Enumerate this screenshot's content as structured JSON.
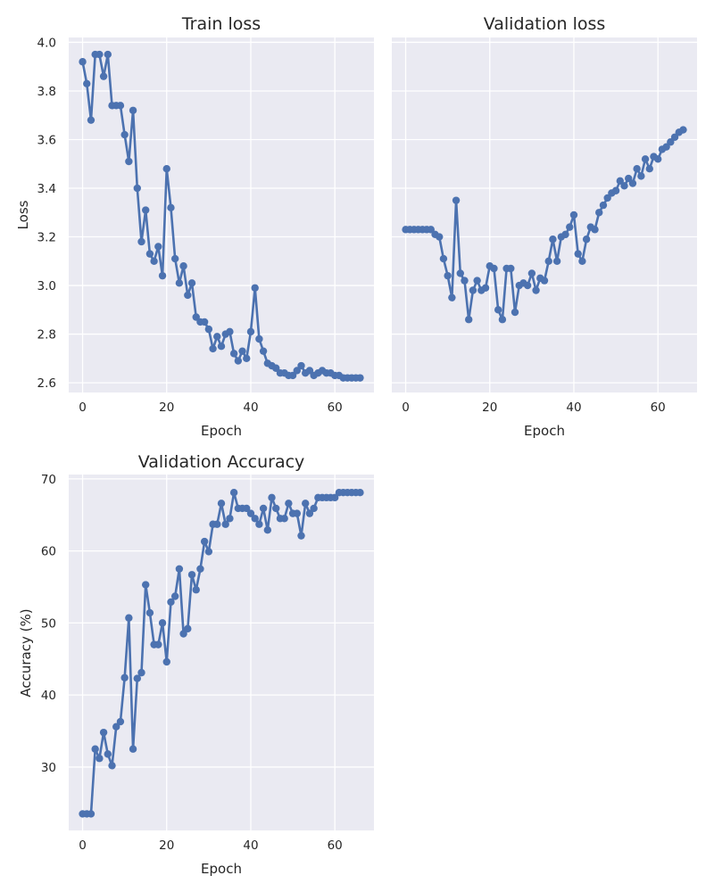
{
  "chart_data": [
    {
      "type": "line",
      "title": "Train loss",
      "xlabel": "Epoch",
      "ylabel": "Loss",
      "xlim": [
        -3.3,
        69.3
      ],
      "ylim": [
        2.56,
        4.02
      ],
      "xticks": [
        0,
        20,
        40,
        60
      ],
      "xtick_labels": [
        "0",
        "20",
        "40",
        "60"
      ],
      "yticks": [
        2.6,
        2.8,
        3.0,
        3.2,
        3.4,
        3.6,
        3.8,
        4.0
      ],
      "ytick_labels": [
        "2.6",
        "2.8",
        "3.0",
        "3.2",
        "3.4",
        "3.6",
        "3.8",
        "4.0"
      ],
      "grid": true,
      "series": [
        {
          "color": "#4C72B0",
          "marker": "circle",
          "x": [
            0,
            1,
            2,
            3,
            4,
            5,
            6,
            7,
            8,
            9,
            10,
            11,
            12,
            13,
            14,
            15,
            16,
            17,
            18,
            19,
            20,
            21,
            22,
            23,
            24,
            25,
            26,
            27,
            28,
            29,
            30,
            31,
            32,
            33,
            34,
            35,
            36,
            37,
            38,
            39,
            40,
            41,
            42,
            43,
            44,
            45,
            46,
            47,
            48,
            49,
            50,
            51,
            52,
            53,
            54,
            55,
            56,
            57,
            58,
            59,
            60,
            61,
            62,
            63,
            64,
            65,
            66
          ],
          "y": [
            3.92,
            3.83,
            3.68,
            3.95,
            3.95,
            3.86,
            3.95,
            3.74,
            3.74,
            3.74,
            3.62,
            3.51,
            3.72,
            3.4,
            3.18,
            3.31,
            3.13,
            3.1,
            3.16,
            3.04,
            3.48,
            3.32,
            3.11,
            3.01,
            3.08,
            2.96,
            3.01,
            2.87,
            2.85,
            2.85,
            2.82,
            2.74,
            2.79,
            2.75,
            2.8,
            2.81,
            2.72,
            2.69,
            2.73,
            2.7,
            2.81,
            2.99,
            2.78,
            2.73,
            2.68,
            2.67,
            2.66,
            2.64,
            2.64,
            2.63,
            2.63,
            2.65,
            2.67,
            2.64,
            2.65,
            2.63,
            2.64,
            2.65,
            2.64,
            2.64,
            2.63,
            2.63,
            2.62,
            2.62,
            2.62,
            2.62,
            2.62
          ]
        }
      ]
    },
    {
      "type": "line",
      "title": "Validation loss",
      "xlabel": "Epoch",
      "ylabel": "",
      "xlim": [
        -3.3,
        69.3
      ],
      "ylim": [
        2.56,
        4.02
      ],
      "xticks": [
        0,
        20,
        40,
        60
      ],
      "xtick_labels": [
        "0",
        "20",
        "40",
        "60"
      ],
      "yticks": [
        2.6,
        2.8,
        3.0,
        3.2,
        3.4,
        3.6,
        3.8,
        4.0
      ],
      "ytick_labels": [],
      "grid": true,
      "series": [
        {
          "color": "#4C72B0",
          "marker": "circle",
          "x": [
            0,
            1,
            2,
            3,
            4,
            5,
            6,
            7,
            8,
            9,
            10,
            11,
            12,
            13,
            14,
            15,
            16,
            17,
            18,
            19,
            20,
            21,
            22,
            23,
            24,
            25,
            26,
            27,
            28,
            29,
            30,
            31,
            32,
            33,
            34,
            35,
            36,
            37,
            38,
            39,
            40,
            41,
            42,
            43,
            44,
            45,
            46,
            47,
            48,
            49,
            50,
            51,
            52,
            53,
            54,
            55,
            56,
            57,
            58,
            59,
            60,
            61,
            62,
            63,
            64,
            65,
            66
          ],
          "y": [
            3.23,
            3.23,
            3.23,
            3.23,
            3.23,
            3.23,
            3.23,
            3.21,
            3.2,
            3.11,
            3.04,
            2.95,
            3.35,
            3.05,
            3.02,
            2.86,
            2.98,
            3.02,
            2.98,
            2.99,
            3.08,
            3.07,
            2.9,
            2.86,
            3.07,
            3.07,
            2.89,
            3.0,
            3.01,
            3.0,
            3.05,
            2.98,
            3.03,
            3.02,
            3.1,
            3.19,
            3.1,
            3.2,
            3.21,
            3.24,
            3.29,
            3.13,
            3.1,
            3.19,
            3.24,
            3.23,
            3.3,
            3.33,
            3.36,
            3.38,
            3.39,
            3.43,
            3.41,
            3.44,
            3.42,
            3.48,
            3.45,
            3.52,
            3.48,
            3.53,
            3.52,
            3.56,
            3.57,
            3.59,
            3.61,
            3.63,
            3.64
          ]
        }
      ]
    },
    {
      "type": "line",
      "title": "Validation Accuracy",
      "xlabel": "Epoch",
      "ylabel": "Accuracy (%)",
      "xlim": [
        -3.3,
        69.3
      ],
      "ylim": [
        21.2,
        70.6
      ],
      "xticks": [
        0,
        20,
        40,
        60
      ],
      "xtick_labels": [
        "0",
        "20",
        "40",
        "60"
      ],
      "yticks": [
        30,
        40,
        50,
        60,
        70
      ],
      "ytick_labels": [
        "30",
        "40",
        "50",
        "60",
        "70"
      ],
      "grid": true,
      "series": [
        {
          "color": "#4C72B0",
          "marker": "circle",
          "x": [
            0,
            1,
            2,
            3,
            4,
            5,
            6,
            7,
            8,
            9,
            10,
            11,
            12,
            13,
            14,
            15,
            16,
            17,
            18,
            19,
            20,
            21,
            22,
            23,
            24,
            25,
            26,
            27,
            28,
            29,
            30,
            31,
            32,
            33,
            34,
            35,
            36,
            37,
            38,
            39,
            40,
            41,
            42,
            43,
            44,
            45,
            46,
            47,
            48,
            49,
            50,
            51,
            52,
            53,
            54,
            55,
            56,
            57,
            58,
            59,
            60,
            61,
            62,
            63,
            64,
            65,
            66
          ],
          "y": [
            23.5,
            23.5,
            23.5,
            32.5,
            31.2,
            34.8,
            31.8,
            30.2,
            35.6,
            36.3,
            42.4,
            50.7,
            32.5,
            42.3,
            43.1,
            55.3,
            51.4,
            47.0,
            47.0,
            50.0,
            44.6,
            52.9,
            53.7,
            57.5,
            48.5,
            49.2,
            56.7,
            54.6,
            57.5,
            61.3,
            59.9,
            63.7,
            63.7,
            66.6,
            63.7,
            64.5,
            68.1,
            65.9,
            65.9,
            65.9,
            65.2,
            64.5,
            63.7,
            65.9,
            62.9,
            67.4,
            65.9,
            64.5,
            64.5,
            66.6,
            65.2,
            65.2,
            62.1,
            66.6,
            65.2,
            65.9,
            67.4,
            67.4,
            67.4,
            67.4,
            67.4,
            68.1,
            68.1,
            68.1,
            68.1,
            68.1,
            68.1
          ]
        }
      ]
    }
  ]
}
